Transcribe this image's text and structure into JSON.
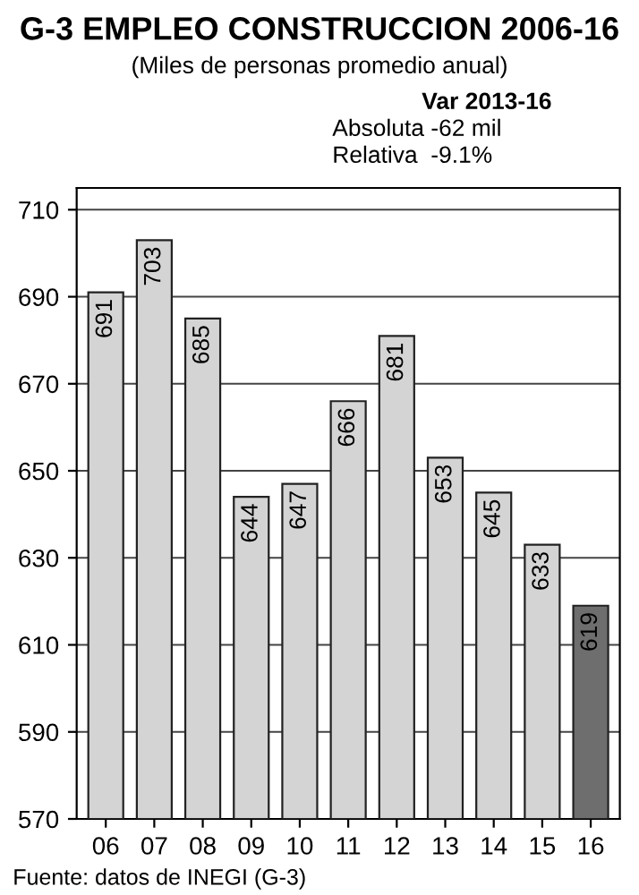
{
  "chart_data": {
    "type": "bar",
    "title": "G-3 EMPLEO CONSTRUCCION 2006-16",
    "subtitle": "(Miles de personas promedio anual)",
    "categories": [
      "06",
      "07",
      "08",
      "09",
      "10",
      "11",
      "12",
      "13",
      "14",
      "15",
      "16"
    ],
    "values": [
      691,
      703,
      685,
      644,
      647,
      666,
      681,
      653,
      645,
      633,
      619
    ],
    "colors": [
      "#d4d4d4",
      "#d4d4d4",
      "#d4d4d4",
      "#d4d4d4",
      "#d4d4d4",
      "#d4d4d4",
      "#d4d4d4",
      "#d4d4d4",
      "#d4d4d4",
      "#d4d4d4",
      "#6e6e6e"
    ],
    "ylim": [
      570,
      715
    ],
    "yticks": [
      570,
      590,
      610,
      630,
      650,
      670,
      690,
      710
    ],
    "grid": "y",
    "data_labels": true,
    "annotations": [
      "Var 2013-16",
      "Absoluta -62 mil",
      "Relativa  -9.1%",
      "Fuente: datos de INEGI (G-3)"
    ]
  }
}
